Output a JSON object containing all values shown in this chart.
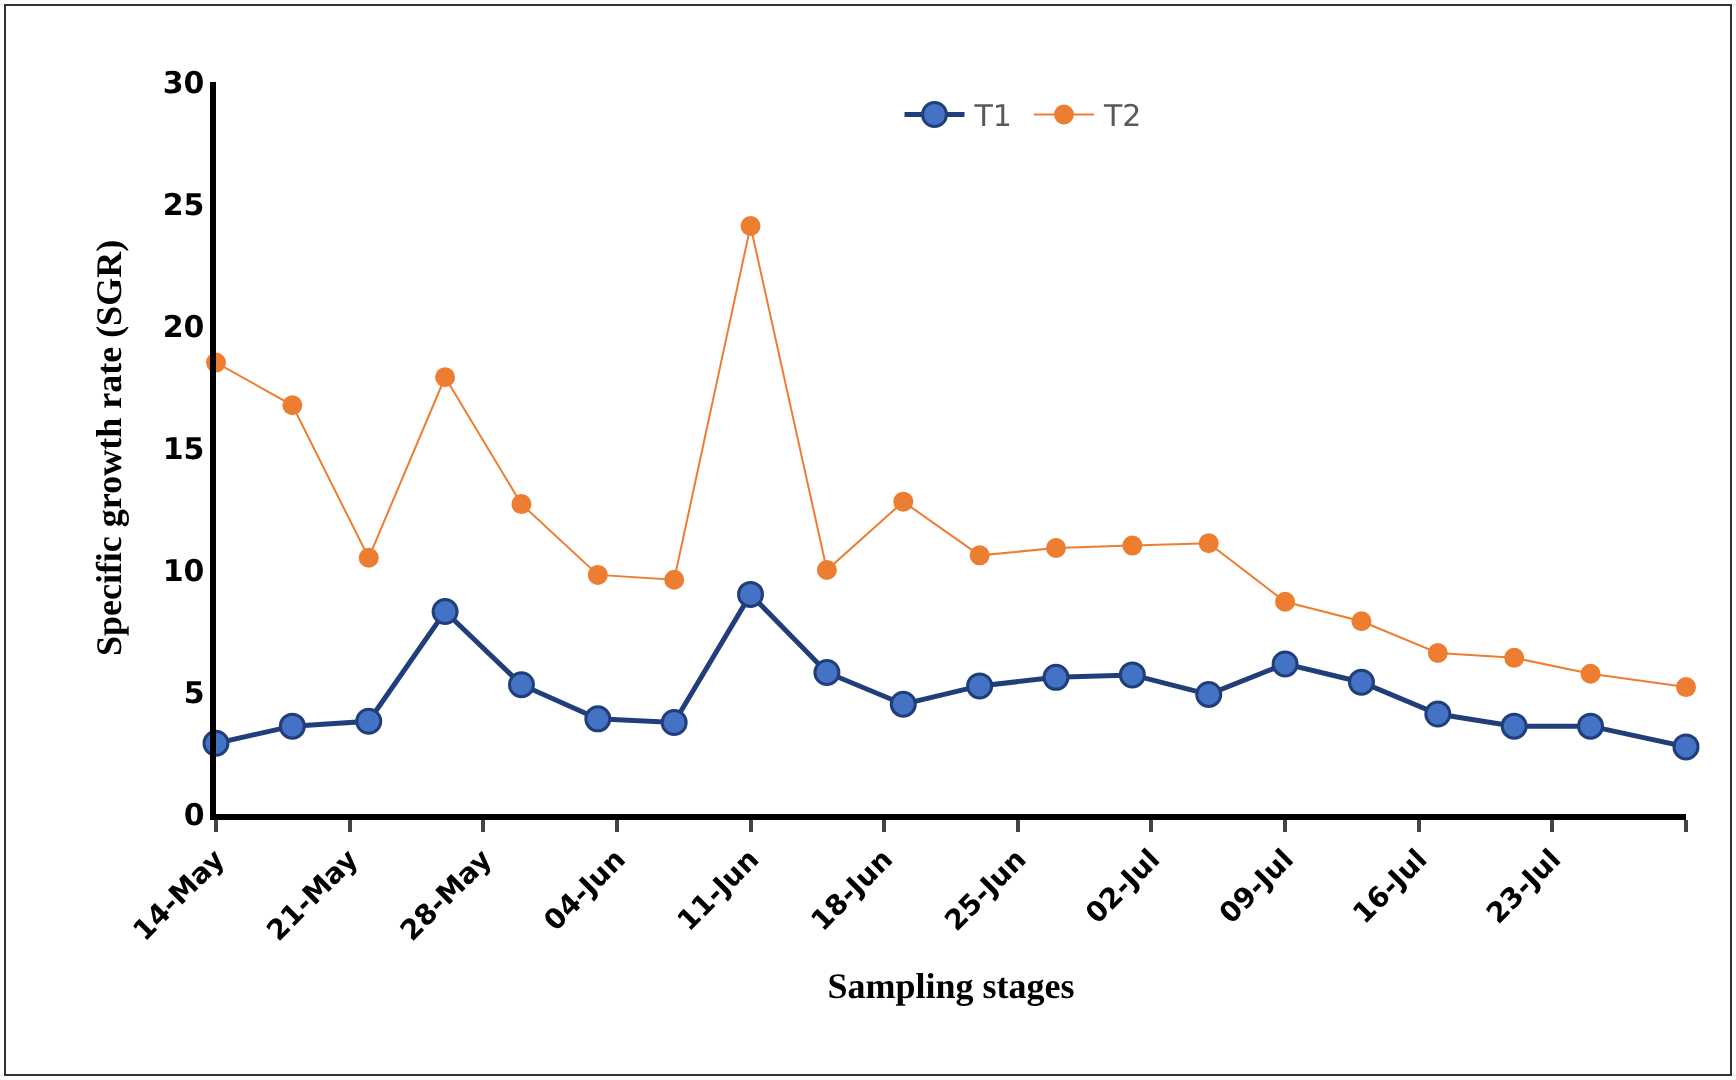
{
  "chart_data": {
    "type": "line",
    "xlabel": "Sampling stages",
    "ylabel": "Specific growth rate (SGR)",
    "x": [
      "--05-14",
      "--05-18",
      "--05-22",
      "--05-26",
      "--05-30",
      "--06-03",
      "--06-07",
      "--06-11",
      "--06-15",
      "--06-19",
      "--06-23",
      "--06-27",
      "--07-01",
      "--07-05",
      "--07-09",
      "--07-13",
      "--07-17",
      "--07-21",
      "--07-25",
      "--07-30"
    ],
    "series": [
      {
        "name": "T1",
        "color": "#203f7a",
        "marker": "circle",
        "values": [
          2.9,
          3.6,
          3.8,
          8.3,
          5.3,
          3.9,
          3.75,
          9.0,
          5.8,
          4.5,
          5.25,
          5.6,
          5.7,
          4.9,
          6.15,
          5.4,
          4.1,
          3.6,
          3.6,
          2.75
        ]
      },
      {
        "name": "T2",
        "color": "#ed7d31",
        "marker": "circle",
        "values": [
          18.5,
          16.75,
          10.5,
          17.9,
          12.7,
          9.8,
          9.6,
          24.1,
          10.0,
          12.8,
          10.6,
          10.9,
          11.0,
          11.1,
          8.7,
          7.9,
          6.6,
          6.4,
          5.75,
          5.2
        ]
      }
    ],
    "xlim": [
      "--05-14",
      "--07-30"
    ],
    "xticks": [
      {
        "value": "--05-14",
        "label": "14-May"
      },
      {
        "value": "--05-21",
        "label": "21-May"
      },
      {
        "value": "--05-28",
        "label": "28-May"
      },
      {
        "value": "--06-04",
        "label": "04-Jun"
      },
      {
        "value": "--06-11",
        "label": "11-Jun"
      },
      {
        "value": "--06-18",
        "label": "18-Jun"
      },
      {
        "value": "--06-25",
        "label": "25-Jun"
      },
      {
        "value": "--07-02",
        "label": "02-Jul"
      },
      {
        "value": "--07-09",
        "label": "09-Jul"
      },
      {
        "value": "--07-16",
        "label": "16-Jul"
      },
      {
        "value": "--07-23",
        "label": "23-Jul"
      },
      {
        "value": "--07-30",
        "label": null
      }
    ],
    "ylim": [
      0,
      30
    ],
    "yticks": [
      0,
      5,
      10,
      15,
      20,
      25,
      30
    ],
    "grid": false,
    "legend": "top",
    "line_style": "solid"
  }
}
